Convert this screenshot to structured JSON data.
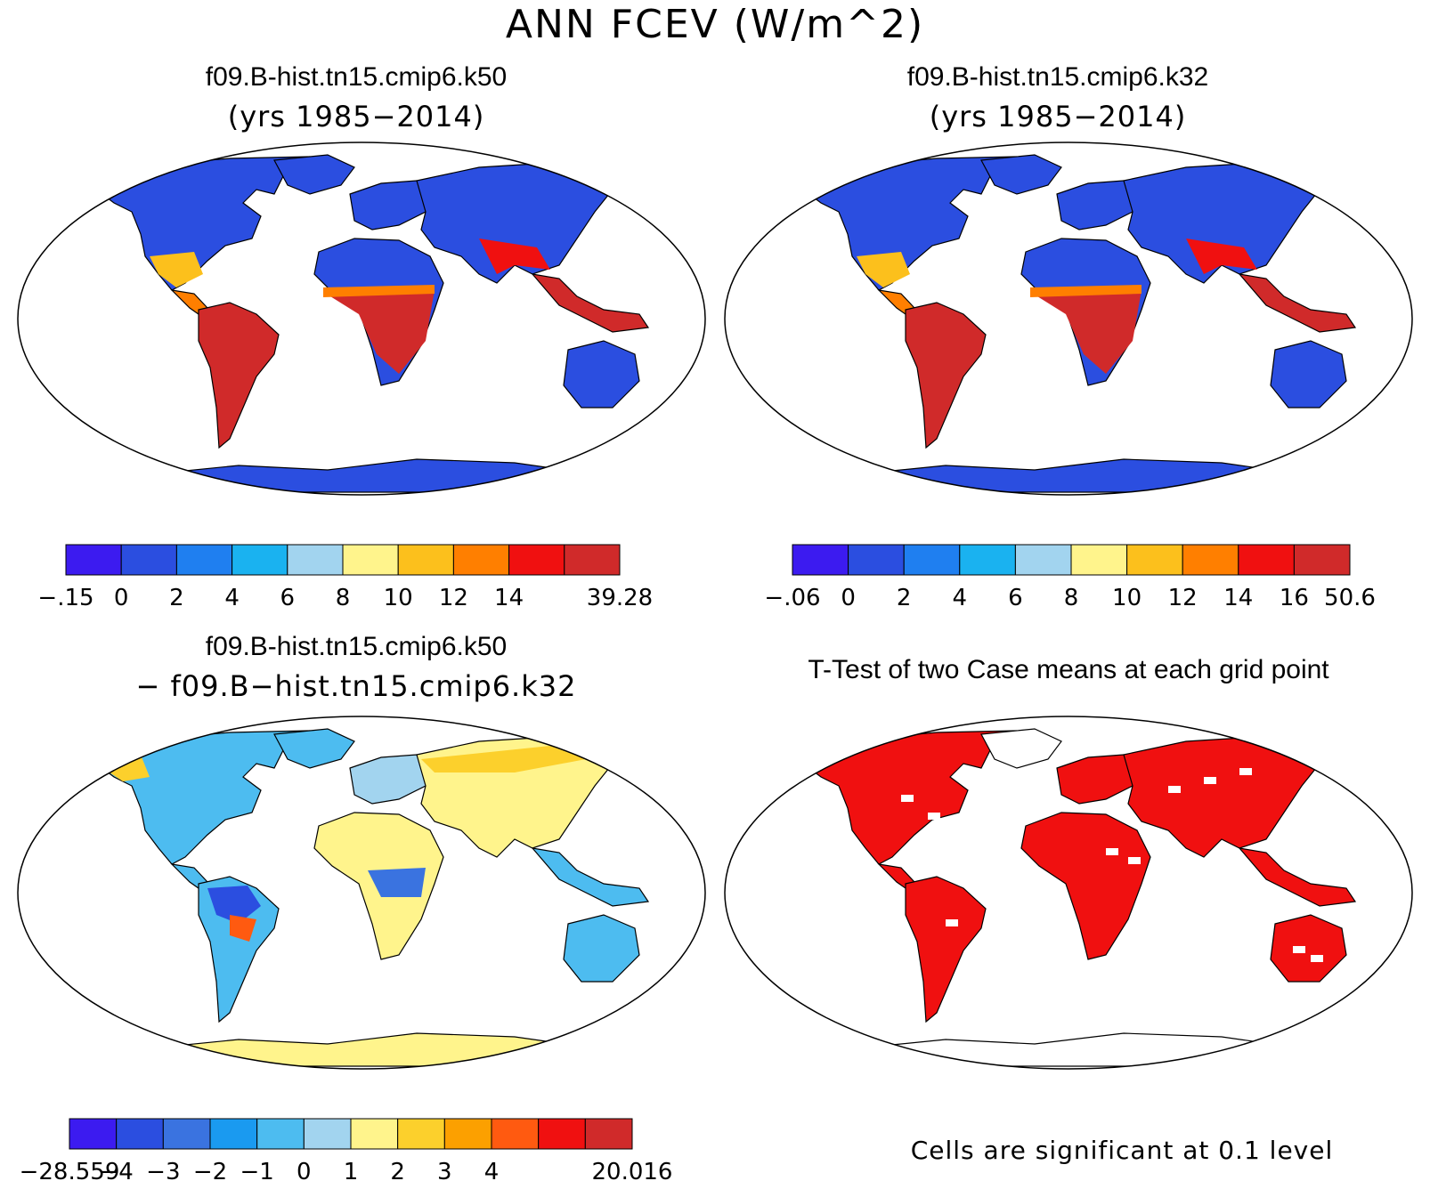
{
  "figure": {
    "title": "ANN FCEV (W/m^2)"
  },
  "panels": [
    {
      "title": "f09.B-hist.tn15.cmip6.k50",
      "subtitle": "(yrs 1985−2014)",
      "colorbar": {
        "colors": [
          "#3c1bf0",
          "#2b4ee0",
          "#1f7ff0",
          "#1ab2f0",
          "#a2d4ef",
          "#fff48c",
          "#fcc01c",
          "#ff7f00",
          "#f01010",
          "#d02a2a"
        ],
        "labels": [
          "−.15",
          "0",
          "2",
          "4",
          "6",
          "8",
          "10",
          "12",
          "14",
          "39.28"
        ]
      }
    },
    {
      "title": "f09.B-hist.tn15.cmip6.k32",
      "subtitle": "(yrs 1985−2014)",
      "colorbar": {
        "colors": [
          "#3c1bf0",
          "#2b4ee0",
          "#1f7ff0",
          "#1ab2f0",
          "#a2d4ef",
          "#fff48c",
          "#fcc01c",
          "#ff7f00",
          "#f01010",
          "#d02a2a"
        ],
        "labels": [
          "−.06",
          "0",
          "2",
          "4",
          "6",
          "8",
          "10",
          "12",
          "14",
          "16",
          "50.6"
        ]
      }
    },
    {
      "title": "f09.B-hist.tn15.cmip6.k50",
      "subtitle": "− f09.B−hist.tn15.cmip6.k32",
      "colorbar": {
        "colors": [
          "#3c1bf0",
          "#2b4ee0",
          "#3a73e0",
          "#1a9af0",
          "#4dbcf0",
          "#a2d4ef",
          "#fff48c",
          "#fcd02c",
          "#fca000",
          "#ff5a10",
          "#f01010",
          "#d02a2a"
        ],
        "labels": [
          "−28.559",
          "−4",
          "−3",
          "−2",
          "−1",
          "0",
          "1",
          "2",
          "3",
          "4",
          "20.016"
        ]
      }
    },
    {
      "title": "T-Test of two Case means at each grid point",
      "note": "Cells are significant at 0.1 level"
    }
  ]
}
